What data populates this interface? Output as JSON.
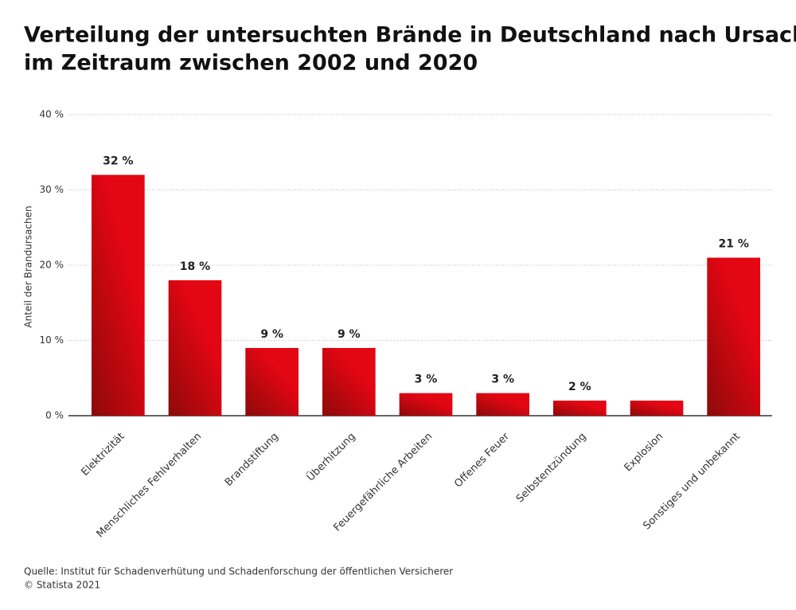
{
  "chart_data": {
    "type": "bar",
    "title": [
      "Verteilung der untersuchten Brände in Deutschland nach Ursache",
      "im Zeitraum zwischen 2002 und 2020"
    ],
    "y_label": "Anteil der Brandursachen",
    "categories": [
      "Elektrizität",
      "Menschliches Fehlverhalten",
      "Brandstiftung",
      "Überhitzung",
      "Feuergefährliche Arbeiten",
      "Offenes Feuer",
      "Selbstentzündung",
      "Explosion",
      "Sonstiges und unbekannt"
    ],
    "values": [
      32,
      18,
      9,
      9,
      3,
      3,
      2,
      2,
      21
    ],
    "value_labels": [
      "32 %",
      "18 %",
      "9 %",
      "9 %",
      "3 %",
      "3 %",
      "2 %",
      null,
      "21 %"
    ],
    "color": "#e30613",
    "ylim": [
      0,
      40
    ],
    "yticks": [
      {
        "value": 0,
        "label": "0 %"
      },
      {
        "value": 10,
        "label": "10 %"
      },
      {
        "value": 20,
        "label": "20 %"
      },
      {
        "value": 30,
        "label": "30 %"
      },
      {
        "value": 40,
        "label": "40 %"
      }
    ],
    "grid": true,
    "source": [
      "Quelle: Institut für Schadenverhütung und Schadenforschung der öffentlichen Versicherer",
      "© Statista 2021"
    ]
  }
}
